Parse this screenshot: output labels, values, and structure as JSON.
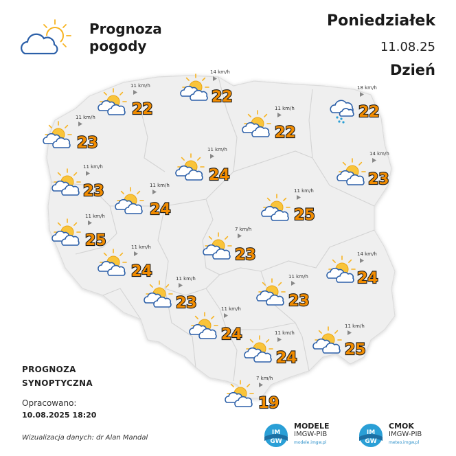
{
  "header": {
    "title_line1": "Prognoza",
    "title_line2": "pogody",
    "day": "Poniedziałek",
    "date": "11.08.25",
    "period": "Dzień"
  },
  "footer": {
    "prognoza_line1": "PROGNOZA",
    "prognoza_line2": "SYNOPTYCZNA",
    "opracowano_label": "Opracowano:",
    "opracowano_datetime": "10.08.2025 18:20",
    "credit": "Wizualizacja danych: dr Alan Mandal"
  },
  "logos": [
    {
      "badge_top": "IM",
      "badge_bottom": "GW",
      "name": "MODELE",
      "sub": "IMGW-PIB",
      "url": "modele.imgw.pl"
    },
    {
      "badge_top": "IM",
      "badge_bottom": "GW",
      "name": "CMOK",
      "sub": "IMGW-PIB",
      "url": "meteo.imgw.pl"
    }
  ],
  "colors": {
    "temperature": "#f28c00",
    "sun": "#f7b320",
    "cloud_outline": "#2b5fa8",
    "map_fill": "#efefef",
    "map_border": "#d6d6d6",
    "badge": "#2a9fd6"
  },
  "stations": [
    {
      "temp": "22",
      "wind": "11 km/h",
      "icon": "partly-cloudy-icon"
    },
    {
      "temp": "22",
      "wind": "14 km/h",
      "icon": "partly-cloudy-icon"
    },
    {
      "temp": "22",
      "wind": "11 km/h",
      "icon": "partly-cloudy-icon"
    },
    {
      "temp": "22",
      "wind": "18 km/h",
      "icon": "cloud-rain-icon"
    },
    {
      "temp": "23",
      "wind": "11 km/h",
      "icon": "partly-cloudy-icon"
    },
    {
      "temp": "24",
      "wind": "11 km/h",
      "icon": "partly-cloudy-icon"
    },
    {
      "temp": "23",
      "wind": "14 km/h",
      "icon": "partly-cloudy-icon"
    },
    {
      "temp": "23",
      "wind": "11 km/h",
      "icon": "partly-cloudy-icon"
    },
    {
      "temp": "24",
      "wind": "11 km/h",
      "icon": "partly-cloudy-icon"
    },
    {
      "temp": "25",
      "wind": "11 km/h",
      "icon": "partly-cloudy-icon"
    },
    {
      "temp": "25",
      "wind": "11 km/h",
      "icon": "partly-cloudy-icon"
    },
    {
      "temp": "23",
      "wind": "7 km/h",
      "icon": "partly-cloudy-icon"
    },
    {
      "temp": "24",
      "wind": "11 km/h",
      "icon": "partly-cloudy-icon"
    },
    {
      "temp": "24",
      "wind": "14 km/h",
      "icon": "partly-cloudy-icon"
    },
    {
      "temp": "23",
      "wind": "11 km/h",
      "icon": "partly-cloudy-icon"
    },
    {
      "temp": "23",
      "wind": "11 km/h",
      "icon": "partly-cloudy-icon"
    },
    {
      "temp": "24",
      "wind": "11 km/h",
      "icon": "partly-cloudy-icon"
    },
    {
      "temp": "24",
      "wind": "11 km/h",
      "icon": "partly-cloudy-icon"
    },
    {
      "temp": "25",
      "wind": "11 km/h",
      "icon": "partly-cloudy-icon"
    },
    {
      "temp": "19",
      "wind": "7 km/h",
      "icon": "partly-cloudy-icon"
    }
  ]
}
